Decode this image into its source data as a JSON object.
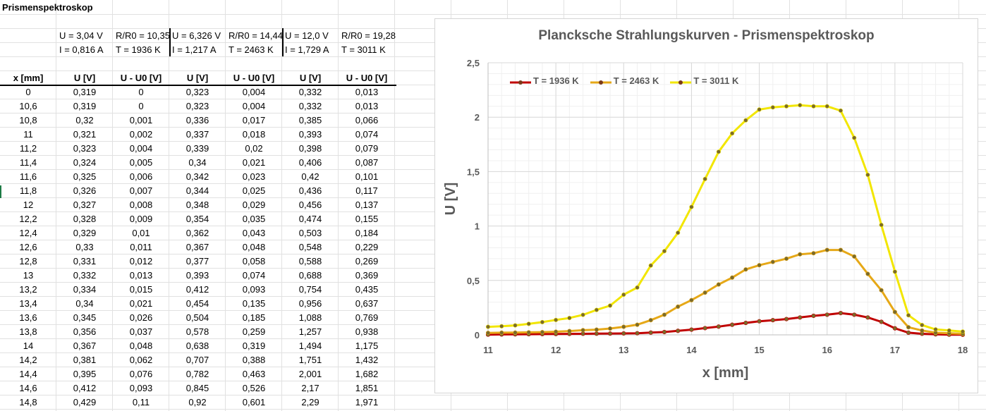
{
  "sheet": {
    "title": "Prismenspektroskop",
    "params": [
      [
        "U = 3,04 V",
        "R/R0 = 10,35",
        "U = 6,326 V",
        "R/R0 = 14,44",
        "U = 12,0 V",
        "R/R0 = 19,28"
      ],
      [
        "I = 0,816 A",
        "T = 1936 K",
        "I = 1,217 A",
        "T = 2463 K",
        "I = 1,729 A",
        "T = 3011 K"
      ]
    ],
    "headers": [
      "x [mm]",
      "U [V]",
      "U - U0 [V]",
      "U [V]",
      "U - U0 [V]",
      "U [V]",
      "U - U0 [V]"
    ],
    "rows": [
      [
        "0",
        "0,319",
        "0",
        "0,323",
        "0,004",
        "0,332",
        "0,013"
      ],
      [
        "10,6",
        "0,319",
        "0",
        "0,323",
        "0,004",
        "0,332",
        "0,013"
      ],
      [
        "10,8",
        "0,32",
        "0,001",
        "0,336",
        "0,017",
        "0,385",
        "0,066"
      ],
      [
        "11",
        "0,321",
        "0,002",
        "0,337",
        "0,018",
        "0,393",
        "0,074"
      ],
      [
        "11,2",
        "0,323",
        "0,004",
        "0,339",
        "0,02",
        "0,398",
        "0,079"
      ],
      [
        "11,4",
        "0,324",
        "0,005",
        "0,34",
        "0,021",
        "0,406",
        "0,087"
      ],
      [
        "11,6",
        "0,325",
        "0,006",
        "0,342",
        "0,023",
        "0,42",
        "0,101"
      ],
      [
        "11,8",
        "0,326",
        "0,007",
        "0,344",
        "0,025",
        "0,436",
        "0,117"
      ],
      [
        "12",
        "0,327",
        "0,008",
        "0,348",
        "0,029",
        "0,456",
        "0,137"
      ],
      [
        "12,2",
        "0,328",
        "0,009",
        "0,354",
        "0,035",
        "0,474",
        "0,155"
      ],
      [
        "12,4",
        "0,329",
        "0,01",
        "0,362",
        "0,043",
        "0,503",
        "0,184"
      ],
      [
        "12,6",
        "0,33",
        "0,011",
        "0,367",
        "0,048",
        "0,548",
        "0,229"
      ],
      [
        "12,8",
        "0,331",
        "0,012",
        "0,377",
        "0,058",
        "0,588",
        "0,269"
      ],
      [
        "13",
        "0,332",
        "0,013",
        "0,393",
        "0,074",
        "0,688",
        "0,369"
      ],
      [
        "13,2",
        "0,334",
        "0,015",
        "0,412",
        "0,093",
        "0,754",
        "0,435"
      ],
      [
        "13,4",
        "0,34",
        "0,021",
        "0,454",
        "0,135",
        "0,956",
        "0,637"
      ],
      [
        "13,6",
        "0,345",
        "0,026",
        "0,504",
        "0,185",
        "1,088",
        "0,769"
      ],
      [
        "13,8",
        "0,356",
        "0,037",
        "0,578",
        "0,259",
        "1,257",
        "0,938"
      ],
      [
        "14",
        "0,367",
        "0,048",
        "0,638",
        "0,319",
        "1,494",
        "1,175"
      ],
      [
        "14,2",
        "0,381",
        "0,062",
        "0,707",
        "0,388",
        "1,751",
        "1,432"
      ],
      [
        "14,4",
        "0,395",
        "0,076",
        "0,782",
        "0,463",
        "2,001",
        "1,682"
      ],
      [
        "14,6",
        "0,412",
        "0,093",
        "0,845",
        "0,526",
        "2,17",
        "1,851"
      ],
      [
        "14,8",
        "0,429",
        "0,11",
        "0,92",
        "0,601",
        "2,29",
        "1,971"
      ]
    ]
  },
  "chart_data": {
    "type": "line",
    "title": "Plancksche Strahlungskurven - Prismenspektroskop",
    "xlabel": "x [mm]",
    "ylabel": "U [V]",
    "xlim": [
      11,
      18
    ],
    "ylim": [
      0,
      2.5
    ],
    "x_ticks": [
      "11",
      "12",
      "13",
      "14",
      "15",
      "16",
      "17",
      "18"
    ],
    "y_ticks": [
      "0",
      "0,5",
      "1",
      "1,5",
      "2",
      "2,5"
    ],
    "grid": true,
    "legend_position": "top-left",
    "x": [
      11,
      11.2,
      11.4,
      11.6,
      11.8,
      12,
      12.2,
      12.4,
      12.6,
      12.8,
      13,
      13.2,
      13.4,
      13.6,
      13.8,
      14,
      14.2,
      14.4,
      14.6,
      14.8,
      15,
      15.2,
      15.4,
      15.6,
      15.8,
      16,
      16.2,
      16.4,
      16.6,
      16.8,
      17,
      17.2,
      17.4,
      17.6,
      17.8,
      18
    ],
    "series": [
      {
        "name": "T = 1936 K",
        "color": "#c00000",
        "values": [
          0.002,
          0.004,
          0.005,
          0.006,
          0.007,
          0.008,
          0.009,
          0.01,
          0.011,
          0.012,
          0.013,
          0.015,
          0.021,
          0.026,
          0.037,
          0.048,
          0.062,
          0.076,
          0.093,
          0.11,
          0.125,
          0.135,
          0.145,
          0.16,
          0.175,
          0.185,
          0.2,
          0.185,
          0.16,
          0.12,
          0.06,
          0.02,
          0.01,
          0.005,
          0.002,
          0.001
        ]
      },
      {
        "name": "T = 2463 K",
        "color": "#e6a817",
        "values": [
          0.018,
          0.02,
          0.021,
          0.023,
          0.025,
          0.029,
          0.035,
          0.043,
          0.048,
          0.058,
          0.074,
          0.093,
          0.135,
          0.185,
          0.259,
          0.319,
          0.388,
          0.463,
          0.526,
          0.601,
          0.64,
          0.67,
          0.7,
          0.74,
          0.75,
          0.78,
          0.78,
          0.72,
          0.56,
          0.41,
          0.21,
          0.07,
          0.04,
          0.02,
          0.015,
          0.01
        ]
      },
      {
        "name": "T = 3011 K",
        "color": "#f2e600",
        "values": [
          0.074,
          0.079,
          0.087,
          0.101,
          0.117,
          0.137,
          0.155,
          0.184,
          0.229,
          0.269,
          0.369,
          0.435,
          0.637,
          0.769,
          0.938,
          1.175,
          1.432,
          1.682,
          1.851,
          1.971,
          2.07,
          2.09,
          2.1,
          2.11,
          2.1,
          2.1,
          2.06,
          1.81,
          1.47,
          1.01,
          0.58,
          0.18,
          0.09,
          0.05,
          0.04,
          0.03
        ]
      }
    ]
  }
}
